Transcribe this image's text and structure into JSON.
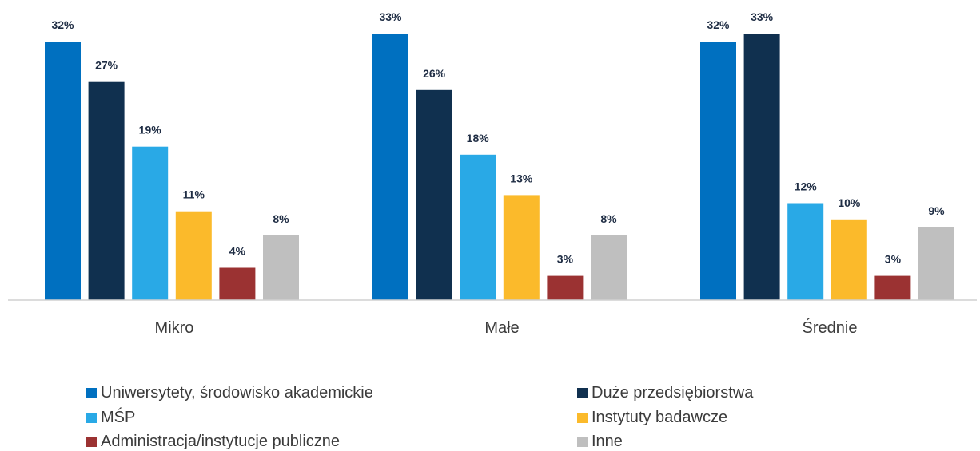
{
  "chart_data": {
    "type": "bar",
    "categories": [
      "Mikro",
      "Małe",
      "Średnie"
    ],
    "series": [
      {
        "name": "Uniwersytety, środowisko akademickie",
        "values": [
          32,
          33,
          32
        ],
        "color": "#0070c0"
      },
      {
        "name": "Duże przedsiębiorstwa",
        "values": [
          27,
          26,
          33
        ],
        "color": "#10304f"
      },
      {
        "name": "MŚP",
        "values": [
          19,
          18,
          12
        ],
        "color": "#29a9e6"
      },
      {
        "name": "Instytuty badawcze",
        "values": [
          11,
          13,
          10
        ],
        "color": "#fbba2b"
      },
      {
        "name": "Administracja/instytucje publiczne",
        "values": [
          4,
          3,
          3
        ],
        "color": "#9b3232"
      },
      {
        "name": "Inne",
        "values": [
          8,
          8,
          9
        ],
        "color": "#bfbfbf"
      }
    ],
    "value_suffix": "%",
    "ylim": [
      0,
      33
    ],
    "grid": false,
    "legend_position": "bottom",
    "title": "",
    "xlabel": "",
    "ylabel": ""
  }
}
